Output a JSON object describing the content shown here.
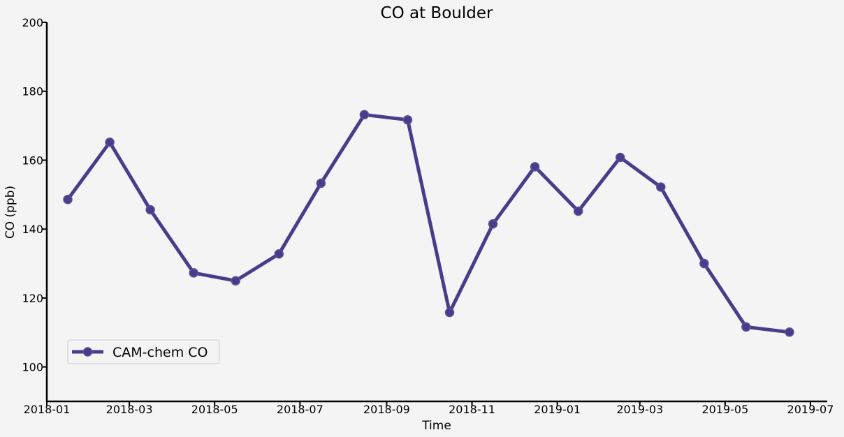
{
  "chart_data": {
    "type": "line",
    "title": "CO at Boulder",
    "xlabel": "Time",
    "ylabel": "CO (ppb)",
    "ylim": [
      90,
      200
    ],
    "yticks": [
      100,
      120,
      140,
      160,
      180,
      200
    ],
    "xlim": [
      "2018-01-01",
      "2019-07-13"
    ],
    "xticks": [
      "2018-01",
      "2018-03",
      "2018-05",
      "2018-07",
      "2018-09",
      "2018-11",
      "2019-01",
      "2019-03",
      "2019-05",
      "2019-07"
    ],
    "grid": false,
    "legend_position": "lower-left",
    "colors": {
      "line": "#483d8b",
      "background": "#f4f4f4"
    },
    "series": [
      {
        "name": "CAM-chem CO",
        "x": [
          "2018-01-16",
          "2018-02-15",
          "2018-03-16",
          "2018-04-16",
          "2018-05-16",
          "2018-06-16",
          "2018-07-16",
          "2018-08-16",
          "2018-09-16",
          "2018-10-16",
          "2018-11-16",
          "2018-12-16",
          "2019-01-16",
          "2019-02-15",
          "2019-03-16",
          "2019-04-16",
          "2019-05-16",
          "2019-06-16"
        ],
        "y": [
          148.6,
          165.2,
          145.6,
          127.3,
          125.0,
          132.8,
          153.3,
          173.2,
          171.7,
          115.8,
          141.5,
          158.1,
          145.2,
          160.8,
          152.2,
          130.0,
          111.6,
          110.1
        ]
      }
    ]
  }
}
